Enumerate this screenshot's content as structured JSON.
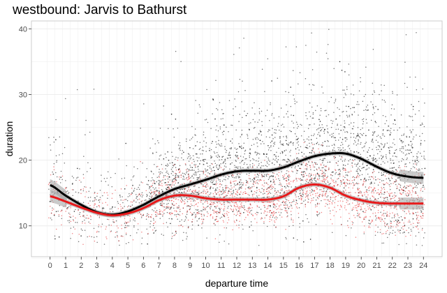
{
  "chart_data": {
    "type": "scatter",
    "title": "westbound: Jarvis to Bathurst",
    "xlabel": "departure time",
    "ylabel": "duration",
    "xlim": [
      -1.2,
      25.2
    ],
    "ylim": [
      5.3,
      41.2
    ],
    "x_ticks": [
      0,
      1,
      2,
      3,
      4,
      5,
      6,
      7,
      8,
      9,
      10,
      11,
      12,
      13,
      14,
      15,
      16,
      17,
      18,
      19,
      20,
      21,
      22,
      23,
      24
    ],
    "x_tick_labels": [
      "0",
      "1",
      "2",
      "3",
      "4",
      "5",
      "6",
      "7",
      "8",
      "9",
      "10",
      "11",
      "12",
      "13",
      "14",
      "15",
      "16",
      "17",
      "18",
      "19",
      "20",
      "21",
      "22",
      "23",
      "24"
    ],
    "y_ticks": [
      10,
      20,
      30,
      40
    ],
    "y_tick_labels": [
      "10",
      "20",
      "30",
      "40"
    ],
    "grid": true,
    "legend": "none",
    "colors": {
      "black_series": "#000000",
      "red_series": "#e8191b",
      "ribbon": "#9e9e9e",
      "grid": "#ebebeb",
      "panel_border": "#cccccc"
    },
    "series": [
      {
        "color": "black",
        "smooth_x": [
          0,
          1,
          2,
          3,
          4,
          5,
          6,
          7,
          8,
          9,
          10,
          11,
          12,
          13,
          14,
          15,
          16,
          17,
          18,
          19,
          20,
          21,
          22,
          23,
          24
        ],
        "smooth_y": [
          16.2,
          14.6,
          13.2,
          12.1,
          11.7,
          12.2,
          13.2,
          14.5,
          15.6,
          16.3,
          17.0,
          17.8,
          18.3,
          18.4,
          18.4,
          18.9,
          19.8,
          20.6,
          21.0,
          21.0,
          20.2,
          19.0,
          18.0,
          17.5,
          17.3
        ]
      },
      {
        "color": "red",
        "smooth_x": [
          0,
          1,
          2,
          3,
          4,
          5,
          6,
          7,
          8,
          9,
          10,
          11,
          12,
          13,
          14,
          15,
          16,
          17,
          18,
          19,
          20,
          21,
          22,
          23,
          24
        ],
        "smooth_y": [
          14.5,
          13.7,
          12.8,
          12.0,
          11.6,
          11.9,
          12.7,
          13.9,
          14.6,
          14.6,
          14.2,
          14.0,
          14.0,
          14.0,
          14.0,
          14.5,
          15.8,
          16.3,
          15.8,
          14.6,
          13.9,
          13.5,
          13.4,
          13.4,
          13.4
        ]
      }
    ]
  }
}
